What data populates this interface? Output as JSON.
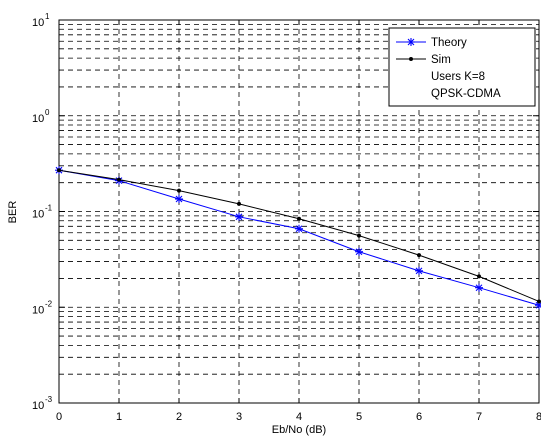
{
  "chart_data": {
    "type": "line",
    "title": "",
    "xlabel": "Eb/No (dB)",
    "ylabel": "BER",
    "xlim": [
      0,
      8
    ],
    "ylim": [
      0.001,
      10
    ],
    "yscale": "log",
    "grid": true,
    "x_ticks": [
      "0",
      "1",
      "2",
      "3",
      "4",
      "5",
      "6",
      "7",
      "8"
    ],
    "y_ticks": [
      {
        "base": "10",
        "exp": "1",
        "value": 10
      },
      {
        "base": "10",
        "exp": "0",
        "value": 1
      },
      {
        "base": "10",
        "exp": "-1",
        "value": 0.1
      },
      {
        "base": "10",
        "exp": "-2",
        "value": 0.01
      },
      {
        "base": "10",
        "exp": "-3",
        "value": 0.001
      }
    ],
    "x": [
      0,
      1,
      2,
      3,
      4,
      5,
      6,
      7,
      8
    ],
    "series": [
      {
        "name": "Theory",
        "color": "#0000ff",
        "marker": "star",
        "values": [
          0.27,
          0.21,
          0.135,
          0.088,
          0.066,
          0.038,
          0.024,
          0.016,
          0.0105
        ]
      },
      {
        "name": "Sim",
        "color": "#000000",
        "marker": "dot",
        "values": [
          0.27,
          0.215,
          0.165,
          0.12,
          0.084,
          0.056,
          0.035,
          0.021,
          0.0115
        ]
      }
    ],
    "legend": {
      "position": "top-right",
      "entries": [
        "Theory",
        "Sim"
      ],
      "extra_lines": [
        "Users K=8",
        "QPSK-CDMA"
      ]
    }
  }
}
